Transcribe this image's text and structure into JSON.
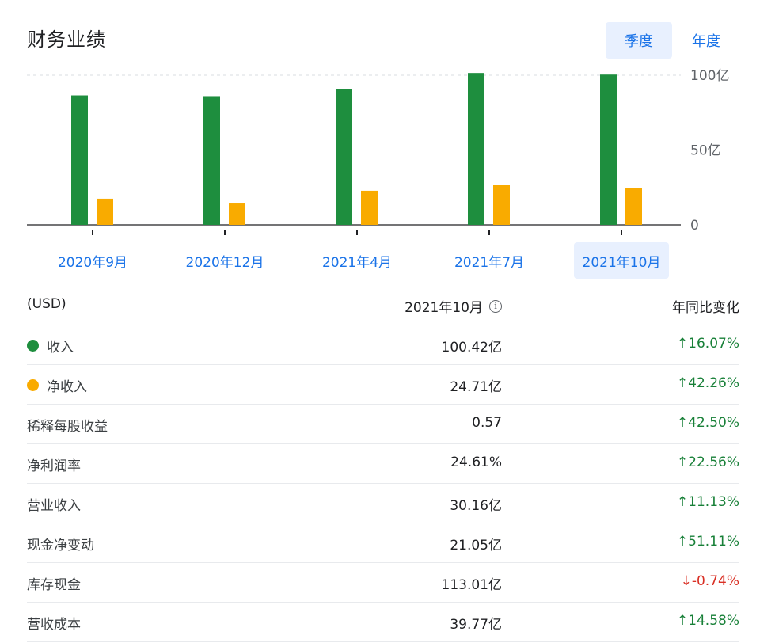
{
  "header": {
    "title": "财务业绩",
    "toggle_quarter": "季度",
    "toggle_annual": "年度"
  },
  "colors": {
    "revenue": "#1e8e3e",
    "net_income": "#f9ab00",
    "accent": "#1a73e8",
    "up": "#188038",
    "down": "#d93025"
  },
  "chart_data": {
    "type": "bar",
    "categories": [
      "2020年9月",
      "2020年12月",
      "2021年4月",
      "2021年7月",
      "2021年10月"
    ],
    "series": [
      {
        "name": "收入",
        "color": "#1e8e3e",
        "values": [
          86.5,
          86.0,
          90.5,
          101.5,
          100.42
        ]
      },
      {
        "name": "净收入",
        "color": "#f9ab00",
        "values": [
          17.5,
          14.8,
          22.8,
          26.8,
          24.71
        ]
      }
    ],
    "y_ticks": [
      "0",
      "50亿",
      "100亿"
    ],
    "ylim": [
      0,
      100
    ],
    "selected_category": "2021年10月",
    "grid": true
  },
  "table": {
    "header": {
      "col1": "(USD)",
      "col2": "2021年10月",
      "col3": "年同比变化"
    },
    "rows": [
      {
        "label": "收入",
        "value": "100.42亿",
        "change": "16.07%",
        "direction": "up",
        "arrow": "↑"
      },
      {
        "label": "净收入",
        "value": "24.71亿",
        "change": "42.26%",
        "direction": "up",
        "arrow": "↑"
      },
      {
        "label": "稀释每股收益",
        "value": "0.57",
        "change": "42.50%",
        "direction": "up",
        "arrow": "↑"
      },
      {
        "label": "净利润率",
        "value": "24.61%",
        "change": "22.56%",
        "direction": "up",
        "arrow": "↑"
      },
      {
        "label": "营业收入",
        "value": "30.16亿",
        "change": "11.13%",
        "direction": "up",
        "arrow": "↑"
      },
      {
        "label": "现金净变动",
        "value": "21.05亿",
        "change": "51.11%",
        "direction": "up",
        "arrow": "↑"
      },
      {
        "label": "库存现金",
        "value": "113.01亿",
        "change": "-0.74%",
        "direction": "down",
        "arrow": "↓"
      },
      {
        "label": "营收成本",
        "value": "39.77亿",
        "change": "14.58%",
        "direction": "up",
        "arrow": "↑"
      }
    ]
  }
}
